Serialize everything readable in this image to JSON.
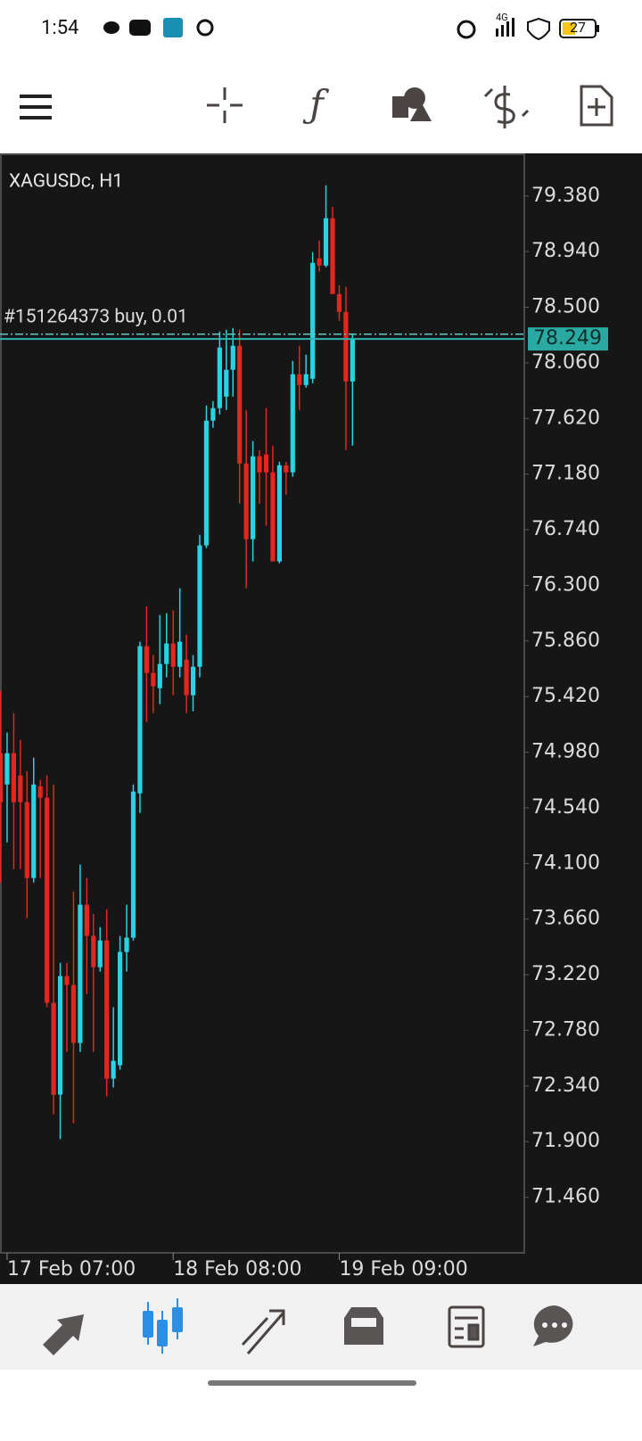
{
  "status_bar": {
    "time": "1:54",
    "network": "4G",
    "battery": "27"
  },
  "chart_data": {
    "type": "candlestick",
    "title": "XAGUSDc, H1",
    "categories": [
      null,
      "17 Feb 07:00",
      null,
      null,
      null,
      null,
      null,
      null,
      null,
      null,
      null,
      null,
      null,
      null,
      null,
      null,
      null,
      null,
      null,
      null,
      null,
      null,
      null,
      null,
      null,
      null,
      "18 Feb 08:00",
      null,
      null,
      null,
      null,
      null,
      null,
      null,
      null,
      null,
      null,
      null,
      null,
      null,
      null,
      null,
      null,
      null,
      null,
      null,
      null,
      null,
      null,
      null,
      null,
      "19 Feb 09:00",
      null,
      null
    ],
    "open": [
      74.972,
      74.725,
      74.972,
      74.796,
      74.585,
      73.985,
      74.711,
      74.62,
      72.998,
      72.271,
      73.209,
      73.139,
      72.68,
      73.774,
      73.527,
      73.28,
      73.491,
      72.398,
      72.504,
      73.4,
      73.513,
      74.655,
      75.819,
      75.607,
      75.487,
      75.678,
      75.84,
      75.656,
      75.713,
      75.431,
      75.656,
      76.616,
      77.603,
      77.702,
      77.793,
      78.005,
      78.195,
      77.264,
      76.665,
      77.321,
      77.335,
      77.194,
      76.489,
      77.25,
      77.194,
      77.97,
      77.885,
      77.934,
      78.886,
      78.83,
      79.204,
      78.604,
      78.463,
      77.913
    ],
    "high": [
      75.466,
      75.135,
      75.29,
      75.078,
      74.831,
      74.937,
      74.761,
      74.796,
      74.725,
      73.315,
      73.315,
      73.879,
      74.091,
      73.985,
      73.703,
      73.597,
      73.738,
      72.963,
      73.527,
      73.774,
      74.725,
      75.854,
      76.136,
      75.748,
      76.065,
      76.08,
      76.101,
      76.277,
      75.91,
      75.748,
      76.7,
      77.723,
      77.758,
      78.308,
      78.322,
      78.336,
      78.322,
      77.687,
      77.441,
      77.37,
      77.702,
      77.405,
      77.278,
      77.278,
      78.075,
      78.195,
      78.125,
      78.936,
      79.027,
      79.465,
      79.295,
      78.675,
      78.661,
      78.287
    ],
    "low": [
      73.95,
      74.267,
      74.056,
      74.056,
      73.668,
      73.95,
      73.985,
      72.963,
      72.116,
      71.919,
      72.61,
      72.046,
      72.61,
      73.068,
      72.61,
      73.245,
      72.257,
      72.328,
      72.469,
      73.245,
      73.491,
      74.5,
      75.219,
      75.29,
      75.36,
      75.572,
      75.431,
      75.572,
      75.29,
      75.304,
      75.572,
      76.594,
      77.546,
      77.652,
      77.687,
      77.793,
      76.947,
      76.277,
      76.489,
      76.947,
      76.771,
      76.489,
      76.474,
      77.017,
      77.159,
      77.687,
      77.864,
      77.899,
      78.781,
      78.816,
      78.604,
      78.393,
      77.37,
      77.405
    ],
    "close": [
      74.585,
      74.972,
      74.585,
      74.585,
      73.985,
      74.725,
      74.62,
      72.998,
      72.271,
      73.209,
      73.139,
      72.68,
      73.774,
      73.527,
      73.28,
      73.491,
      72.398,
      72.539,
      73.4,
      73.513,
      74.669,
      75.819,
      75.607,
      75.501,
      75.678,
      75.84,
      75.656,
      75.854,
      75.431,
      75.656,
      76.616,
      77.603,
      77.702,
      78.181,
      78.005,
      78.195,
      77.264,
      76.665,
      77.321,
      77.194,
      77.194,
      76.489,
      77.25,
      77.194,
      77.97,
      77.885,
      77.97,
      78.851,
      78.83,
      79.204,
      78.604,
      78.463,
      77.913,
      78.249
    ],
    "up_color": "#29d3e6",
    "down_color": "#e3261e",
    "ylim": [
      71.02,
      79.71
    ],
    "yticks": [
      {
        "value": 79.38,
        "label": "79.380"
      },
      {
        "value": 78.94,
        "label": "78.940"
      },
      {
        "value": 78.5,
        "label": "78.500"
      },
      {
        "value": 78.06,
        "label": "78.060"
      },
      {
        "value": 77.62,
        "label": "77.620"
      },
      {
        "value": 77.18,
        "label": "77.180"
      },
      {
        "value": 76.74,
        "label": "76.740"
      },
      {
        "value": 76.3,
        "label": "76.300"
      },
      {
        "value": 75.86,
        "label": "75.860"
      },
      {
        "value": 75.42,
        "label": "75.420"
      },
      {
        "value": 74.98,
        "label": "74.980"
      },
      {
        "value": 74.54,
        "label": "74.540"
      },
      {
        "value": 74.1,
        "label": "74.100"
      },
      {
        "value": 73.66,
        "label": "73.660"
      },
      {
        "value": 73.22,
        "label": "73.220"
      },
      {
        "value": 72.78,
        "label": "72.780"
      },
      {
        "value": 72.34,
        "label": "72.340"
      },
      {
        "value": 71.9,
        "label": "71.900"
      },
      {
        "value": 71.46,
        "label": "71.460"
      }
    ],
    "grid": false,
    "order_line": {
      "label": "#151264373 buy, 0.01",
      "value": 78.287
    },
    "last_price": 78.249
  }
}
